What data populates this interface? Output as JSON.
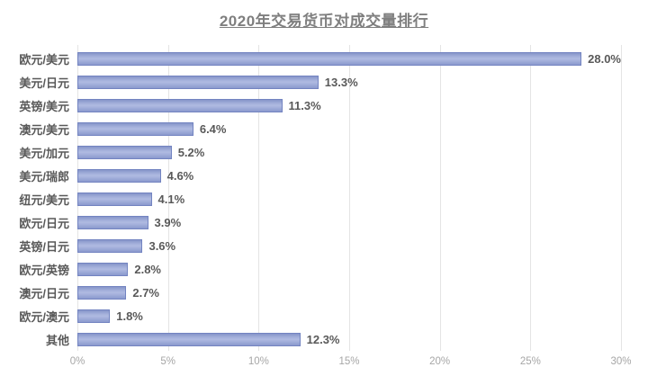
{
  "chart_data": {
    "type": "bar",
    "orientation": "horizontal",
    "title": "2020年交易货币对成交量排行",
    "categories": [
      "欧元/美元",
      "美元/日元",
      "英镑/美元",
      "澳元/美元",
      "美元/加元",
      "美元/瑞郎",
      "纽元/美元",
      "欧元/日元",
      "英镑/日元",
      "欧元/英镑",
      "澳元/日元",
      "欧元/澳元",
      "其他"
    ],
    "values": [
      28.0,
      13.3,
      11.3,
      6.4,
      5.2,
      4.6,
      4.1,
      3.9,
      3.6,
      2.8,
      2.7,
      1.8,
      12.3
    ],
    "data_labels": [
      "28.0%",
      "13.3%",
      "11.3%",
      "6.4%",
      "5.2%",
      "4.6%",
      "4.1%",
      "3.9%",
      "3.6%",
      "2.8%",
      "2.7%",
      "1.8%",
      "12.3%"
    ],
    "xlabel": "",
    "ylabel": "",
    "xlim": [
      0,
      30
    ],
    "x_ticks": [
      "0%",
      "5%",
      "10%",
      "15%",
      "20%",
      "25%",
      "30%"
    ],
    "grid": true,
    "legend": "none",
    "colors": {
      "bar_fill": "#A3AFDA",
      "bar_border": "#7384C1",
      "category_label": "#595959",
      "data_label": "#595959",
      "tick_label": "#A6A6A6",
      "title": "#7F7F7F",
      "gridline": "#E4E4E4",
      "background": "#FFFFFF"
    }
  }
}
